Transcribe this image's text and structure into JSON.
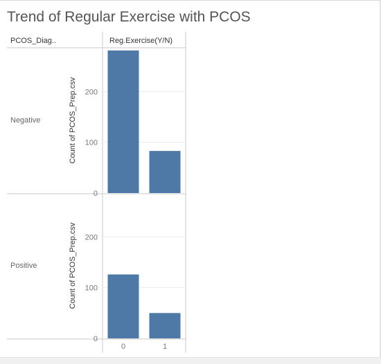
{
  "title": "Trend of Regular Exercise with PCOS",
  "headers": {
    "row_dimension": "PCOS_Diag..",
    "column_dimension": "Reg.Exercise(Y/N)"
  },
  "colors": {
    "bar": "#4e79a7",
    "grid": "#ececec",
    "divider": "#c8c8c8"
  },
  "chart_data": {
    "type": "bar",
    "categories": [
      "0",
      "1"
    ],
    "ylabel": "Count of PCOS_Prep.csv",
    "ylim": [
      0,
      285
    ],
    "yticks": [
      0,
      100,
      200
    ],
    "grid": true,
    "panels": [
      {
        "row": "Negative",
        "values": [
          281,
          83
        ]
      },
      {
        "row": "Positive",
        "values": [
          126,
          50
        ]
      }
    ]
  }
}
